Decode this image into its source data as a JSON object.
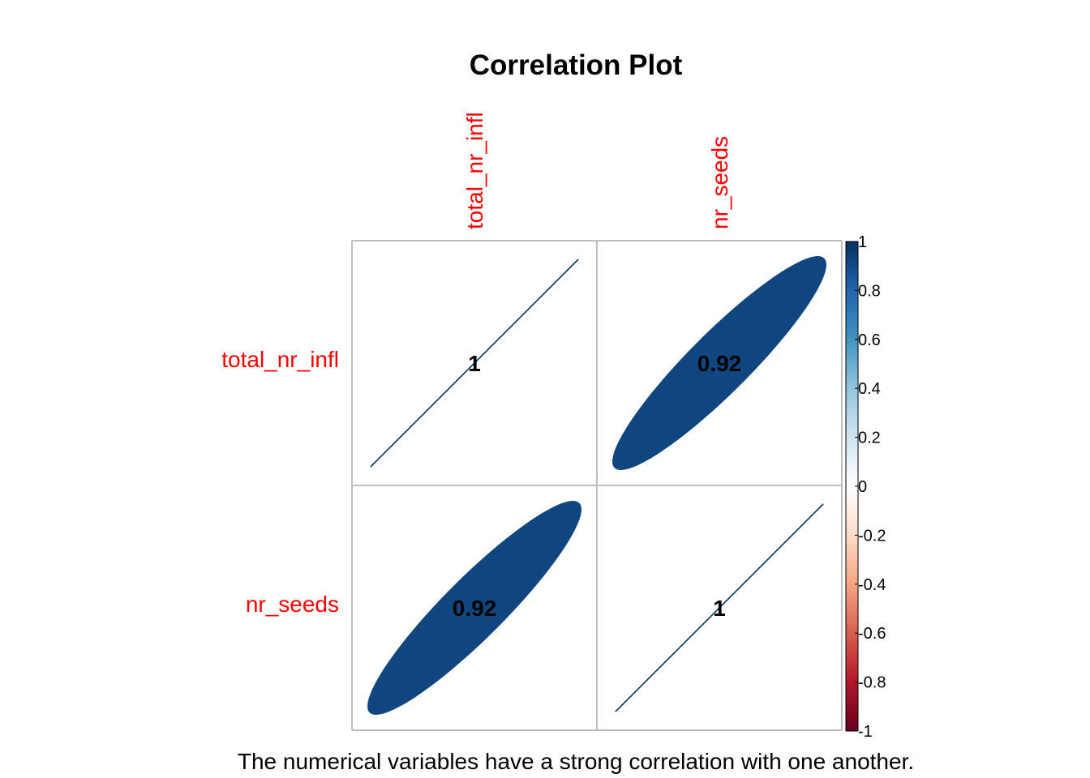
{
  "chart_data": {
    "type": "heatmap",
    "title": "Correlation Plot",
    "method": "ellipse",
    "variables": [
      "total_nr_infl",
      "nr_seeds"
    ],
    "matrix": [
      [
        1,
        0.92
      ],
      [
        0.92,
        1
      ]
    ],
    "cell_labels": [
      [
        "1",
        "0.92"
      ],
      [
        "0.92",
        "1"
      ]
    ],
    "label_color": "#FF0000",
    "grid_color": "#BEBEBE",
    "colorbar": {
      "range": [
        -1,
        1
      ],
      "ticks": [
        "1",
        "0.8",
        "0.6",
        "0.4",
        "0.2",
        "0",
        "-0.2",
        "-0.4",
        "-0.6",
        "-0.8",
        "-1"
      ],
      "colors": [
        "#67001F",
        "#B2182B",
        "#D6604D",
        "#F4A582",
        "#FDDBC7",
        "#FFFFFF",
        "#D1E5F0",
        "#92C5DE",
        "#4393C3",
        "#2166AC",
        "#053061"
      ]
    },
    "caption": "The numerical variables have a strong correlation with one another."
  }
}
